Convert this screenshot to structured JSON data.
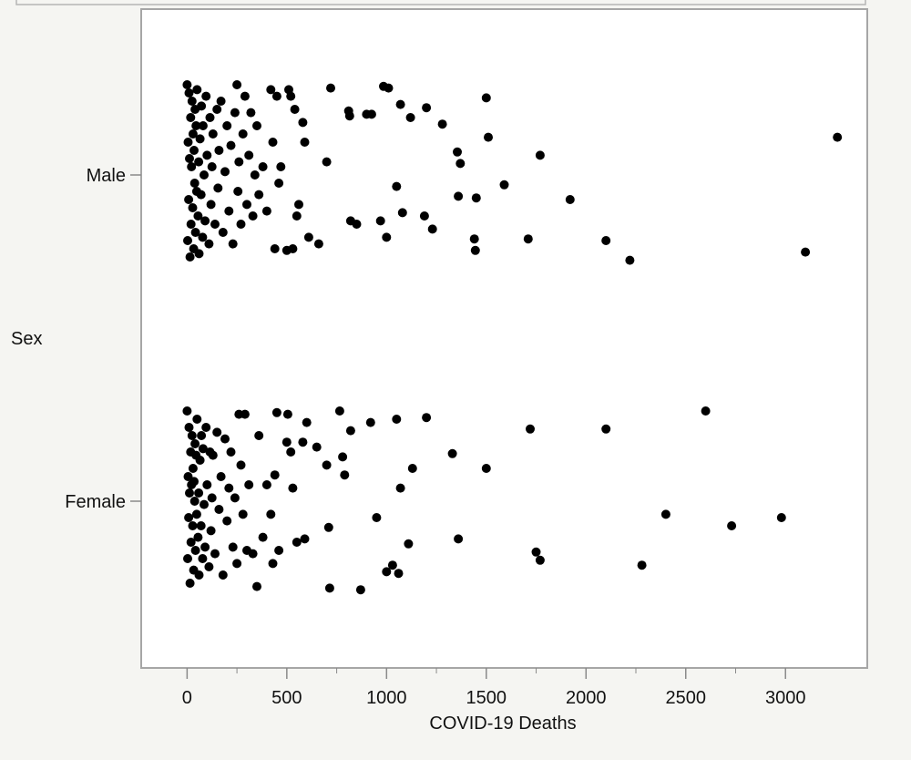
{
  "chart_data": {
    "type": "scatter",
    "title": "",
    "xlabel": "COVID-19 Deaths",
    "ylabel": "Sex",
    "xlim": [
      -230,
      3410
    ],
    "x_ticks": [
      "0",
      "500",
      "1000",
      "1500",
      "2000",
      "2500",
      "3000"
    ],
    "x_tick_values": [
      0,
      500,
      1000,
      1500,
      2000,
      2500,
      3000
    ],
    "y_categories": [
      "Male",
      "Female"
    ],
    "grid": false,
    "legend": "none",
    "colors": {
      "point": "#000000",
      "plot_background": "#ffffff",
      "frame": "#a6a6a6",
      "page_background": "#f5f5f2"
    },
    "series": [
      {
        "category": "Male",
        "points": [
          [
            0,
            0.55
          ],
          [
            3,
            -0.4
          ],
          [
            5,
            0.2
          ],
          [
            8,
            -0.15
          ],
          [
            10,
            0.5
          ],
          [
            12,
            0.1
          ],
          [
            15,
            -0.5
          ],
          [
            18,
            0.35
          ],
          [
            20,
            -0.3
          ],
          [
            22,
            0.05
          ],
          [
            25,
            0.45
          ],
          [
            28,
            -0.2
          ],
          [
            30,
            0.25
          ],
          [
            33,
            -0.45
          ],
          [
            35,
            0.15
          ],
          [
            38,
            -0.05
          ],
          [
            40,
            0.4
          ],
          [
            42,
            -0.35
          ],
          [
            45,
            0.3
          ],
          [
            48,
            -0.1
          ],
          [
            50,
            0.52
          ],
          [
            55,
            -0.25
          ],
          [
            58,
            0.08
          ],
          [
            60,
            -0.48
          ],
          [
            65,
            0.22
          ],
          [
            70,
            -0.12
          ],
          [
            72,
            0.42
          ],
          [
            78,
            -0.38
          ],
          [
            80,
            0.3
          ],
          [
            85,
            0.0
          ],
          [
            90,
            -0.28
          ],
          [
            95,
            0.48
          ],
          [
            100,
            0.12
          ],
          [
            110,
            -0.42
          ],
          [
            115,
            0.35
          ],
          [
            120,
            -0.18
          ],
          [
            125,
            0.05
          ],
          [
            130,
            0.25
          ],
          [
            140,
            -0.3
          ],
          [
            150,
            0.4
          ],
          [
            155,
            -0.08
          ],
          [
            160,
            0.15
          ],
          [
            170,
            0.45
          ],
          [
            180,
            -0.35
          ],
          [
            190,
            0.02
          ],
          [
            200,
            0.3
          ],
          [
            210,
            -0.22
          ],
          [
            220,
            0.18
          ],
          [
            230,
            -0.42
          ],
          [
            240,
            0.38
          ],
          [
            250,
            0.55
          ],
          [
            255,
            -0.1
          ],
          [
            260,
            0.08
          ],
          [
            270,
            -0.3
          ],
          [
            280,
            0.25
          ],
          [
            290,
            0.48
          ],
          [
            300,
            -0.18
          ],
          [
            310,
            0.12
          ],
          [
            320,
            0.38
          ],
          [
            330,
            -0.25
          ],
          [
            340,
            0.0
          ],
          [
            350,
            0.3
          ],
          [
            360,
            -0.12
          ],
          [
            380,
            0.05
          ],
          [
            400,
            -0.22
          ],
          [
            420,
            0.52
          ],
          [
            430,
            0.2
          ],
          [
            440,
            -0.45
          ],
          [
            450,
            0.48
          ],
          [
            460,
            -0.05
          ],
          [
            470,
            0.05
          ],
          [
            500,
            -0.46
          ],
          [
            510,
            0.52
          ],
          [
            520,
            0.48
          ],
          [
            530,
            -0.45
          ],
          [
            540,
            0.4
          ],
          [
            550,
            -0.25
          ],
          [
            560,
            -0.18
          ],
          [
            580,
            0.32
          ],
          [
            590,
            0.2
          ],
          [
            610,
            -0.38
          ],
          [
            660,
            -0.42
          ],
          [
            700,
            0.08
          ],
          [
            720,
            0.53
          ],
          [
            810,
            0.39
          ],
          [
            815,
            0.36
          ],
          [
            820,
            -0.28
          ],
          [
            850,
            -0.3
          ],
          [
            900,
            0.37
          ],
          [
            925,
            0.37
          ],
          [
            970,
            -0.28
          ],
          [
            985,
            0.54
          ],
          [
            1000,
            -0.38
          ],
          [
            1010,
            0.53
          ],
          [
            1050,
            -0.07
          ],
          [
            1070,
            0.43
          ],
          [
            1080,
            -0.23
          ],
          [
            1120,
            0.35
          ],
          [
            1190,
            -0.25
          ],
          [
            1200,
            0.41
          ],
          [
            1230,
            -0.33
          ],
          [
            1280,
            0.31
          ],
          [
            1355,
            0.14
          ],
          [
            1360,
            -0.13
          ],
          [
            1370,
            0.07
          ],
          [
            1440,
            -0.39
          ],
          [
            1445,
            -0.46
          ],
          [
            1450,
            -0.14
          ],
          [
            1500,
            0.47
          ],
          [
            1510,
            0.23
          ],
          [
            1590,
            -0.06
          ],
          [
            1710,
            -0.39
          ],
          [
            1770,
            0.12
          ],
          [
            1920,
            -0.15
          ],
          [
            2100,
            -0.4
          ],
          [
            2220,
            -0.52
          ],
          [
            3100,
            -0.47
          ],
          [
            3260,
            0.23
          ]
        ]
      },
      {
        "category": "Female",
        "points": [
          [
            0,
            0.55
          ],
          [
            3,
            -0.35
          ],
          [
            5,
            0.15
          ],
          [
            8,
            -0.1
          ],
          [
            10,
            0.45
          ],
          [
            12,
            0.05
          ],
          [
            15,
            -0.5
          ],
          [
            18,
            0.3
          ],
          [
            20,
            -0.25
          ],
          [
            22,
            0.1
          ],
          [
            25,
            0.4
          ],
          [
            28,
            -0.15
          ],
          [
            30,
            0.2
          ],
          [
            33,
            -0.42
          ],
          [
            35,
            0.12
          ],
          [
            38,
            0.0
          ],
          [
            40,
            0.35
          ],
          [
            42,
            -0.3
          ],
          [
            45,
            0.28
          ],
          [
            48,
            -0.08
          ],
          [
            50,
            0.5
          ],
          [
            55,
            -0.22
          ],
          [
            58,
            0.05
          ],
          [
            60,
            -0.45
          ],
          [
            65,
            0.25
          ],
          [
            70,
            -0.15
          ],
          [
            72,
            0.4
          ],
          [
            78,
            -0.35
          ],
          [
            80,
            0.32
          ],
          [
            85,
            -0.02
          ],
          [
            90,
            -0.28
          ],
          [
            95,
            0.45
          ],
          [
            100,
            0.1
          ],
          [
            110,
            -0.4
          ],
          [
            115,
            0.3
          ],
          [
            120,
            -0.18
          ],
          [
            125,
            0.02
          ],
          [
            130,
            0.28
          ],
          [
            140,
            -0.32
          ],
          [
            150,
            0.42
          ],
          [
            160,
            -0.05
          ],
          [
            170,
            0.15
          ],
          [
            180,
            -0.45
          ],
          [
            190,
            0.38
          ],
          [
            200,
            -0.12
          ],
          [
            210,
            0.08
          ],
          [
            220,
            0.3
          ],
          [
            230,
            -0.28
          ],
          [
            240,
            0.02
          ],
          [
            250,
            -0.38
          ],
          [
            260,
            0.53
          ],
          [
            270,
            0.22
          ],
          [
            280,
            -0.08
          ],
          [
            290,
            0.53
          ],
          [
            300,
            -0.3
          ],
          [
            310,
            0.1
          ],
          [
            330,
            -0.32
          ],
          [
            350,
            -0.52
          ],
          [
            360,
            0.4
          ],
          [
            380,
            -0.22
          ],
          [
            400,
            0.1
          ],
          [
            420,
            -0.08
          ],
          [
            430,
            -0.38
          ],
          [
            440,
            0.16
          ],
          [
            450,
            0.54
          ],
          [
            460,
            -0.3
          ],
          [
            500,
            0.36
          ],
          [
            505,
            0.53
          ],
          [
            520,
            0.3
          ],
          [
            530,
            0.08
          ],
          [
            550,
            -0.25
          ],
          [
            580,
            0.36
          ],
          [
            590,
            -0.23
          ],
          [
            600,
            0.48
          ],
          [
            650,
            0.33
          ],
          [
            700,
            0.22
          ],
          [
            710,
            -0.16
          ],
          [
            715,
            -0.53
          ],
          [
            765,
            0.55
          ],
          [
            780,
            0.27
          ],
          [
            790,
            0.16
          ],
          [
            820,
            0.43
          ],
          [
            870,
            -0.54
          ],
          [
            920,
            0.48
          ],
          [
            950,
            -0.1
          ],
          [
            1000,
            -0.43
          ],
          [
            1030,
            -0.39
          ],
          [
            1050,
            0.5
          ],
          [
            1060,
            -0.44
          ],
          [
            1070,
            0.08
          ],
          [
            1110,
            -0.26
          ],
          [
            1130,
            0.2
          ],
          [
            1200,
            0.51
          ],
          [
            1330,
            0.29
          ],
          [
            1360,
            -0.23
          ],
          [
            1500,
            0.2
          ],
          [
            1720,
            0.44
          ],
          [
            1750,
            -0.31
          ],
          [
            1770,
            -0.36
          ],
          [
            2100,
            0.44
          ],
          [
            2280,
            -0.39
          ],
          [
            2400,
            -0.08
          ],
          [
            2600,
            0.55
          ],
          [
            2730,
            -0.15
          ],
          [
            2980,
            -0.1
          ]
        ]
      }
    ]
  }
}
